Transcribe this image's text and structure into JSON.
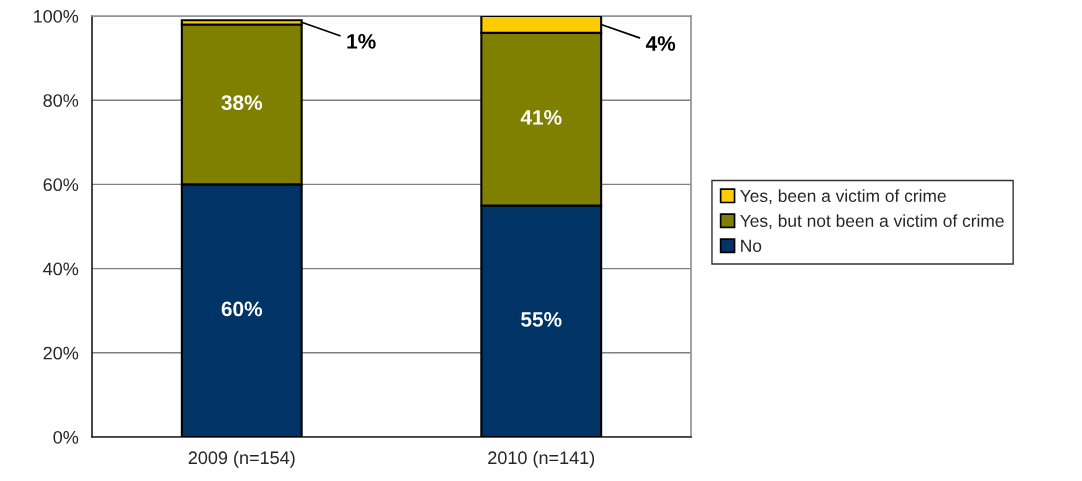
{
  "chart_data": {
    "type": "bar",
    "stacked": true,
    "categories": [
      "2009 (n=154)",
      "2010 (n=141)"
    ],
    "series": [
      {
        "name": "No",
        "color": "#003366",
        "values": [
          60,
          55
        ],
        "value_labels": [
          "60%",
          "55%"
        ]
      },
      {
        "name": "Yes, but not been a victim of crime",
        "color": "#808000",
        "values": [
          38,
          41
        ],
        "value_labels": [
          "38%",
          "41%"
        ]
      },
      {
        "name": "Yes, been a victim of crime",
        "color": "#ffcc00",
        "values": [
          1,
          4
        ],
        "value_labels": [
          "1%",
          "4%"
        ]
      }
    ],
    "ylim": [
      0,
      100
    ],
    "yticks": [
      {
        "value": 0,
        "label": "0%"
      },
      {
        "value": 20,
        "label": "20%"
      },
      {
        "value": 40,
        "label": "40%"
      },
      {
        "value": 60,
        "label": "60%"
      },
      {
        "value": 80,
        "label": "80%"
      },
      {
        "value": 100,
        "label": "100%"
      }
    ],
    "grid": "y",
    "legend": "right"
  }
}
